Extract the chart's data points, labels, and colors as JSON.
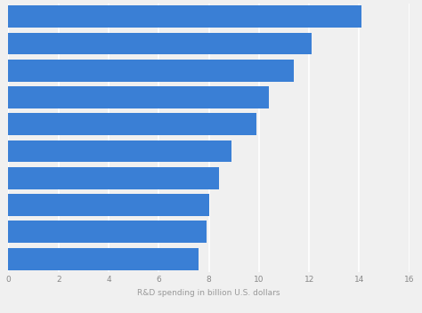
{
  "values": [
    14.1,
    12.1,
    11.4,
    10.4,
    9.9,
    8.9,
    8.4,
    8.0,
    7.9,
    7.6
  ],
  "bar_color": "#3a7fd5",
  "background_color": "#f0f0f0",
  "plot_background": "#f0f0f0",
  "xlabel": "R&D spending in billion U.S. dollars",
  "xlim": [
    0,
    16
  ],
  "xticks": [
    0,
    2,
    4,
    6,
    8,
    10,
    12,
    14,
    16
  ],
  "grid_color": "#ffffff",
  "xlabel_fontsize": 6.5,
  "tick_fontsize": 6.5,
  "bar_height": 0.82
}
